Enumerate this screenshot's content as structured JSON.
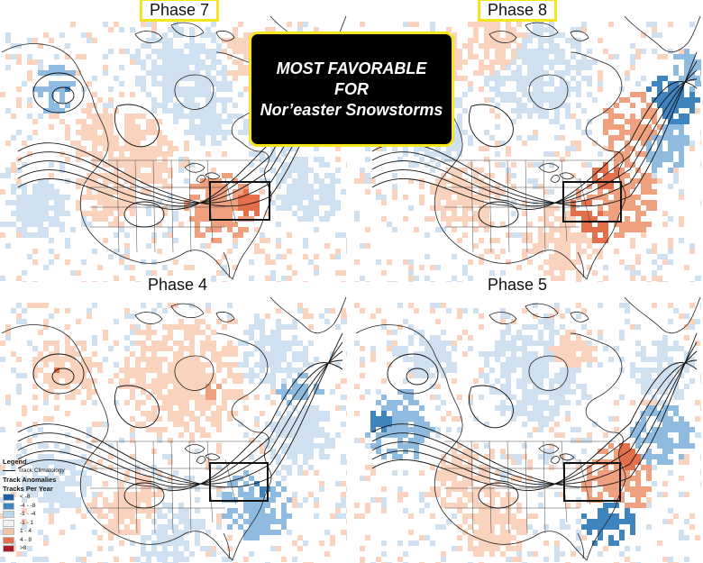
{
  "panels": [
    {
      "id": "p7",
      "title": "Phase 7",
      "highlighted": true,
      "favorable": true
    },
    {
      "id": "p8",
      "title": "Phase 8",
      "highlighted": true,
      "favorable": true
    },
    {
      "id": "p4",
      "title": "Phase 4",
      "highlighted": false,
      "favorable": false
    },
    {
      "id": "p5",
      "title": "Phase 5",
      "highlighted": false,
      "favorable": false
    }
  ],
  "callout": {
    "line1": "MOST FAVORABLE",
    "line2": "FOR",
    "line3": "Nor’easter Snowstorms"
  },
  "legend": {
    "title": "Legend",
    "climatology_label": "Track Climatology",
    "anomalies_label": "Track Anomalies",
    "units_label": "Tracks Per Year",
    "classes": [
      {
        "label": "< -8",
        "color": "#1f5fa0"
      },
      {
        "label": "-4 - -8",
        "color": "#3e85c0"
      },
      {
        "label": "-1 - -4",
        "color": "#bcd7ec"
      },
      {
        "label": "-1 - 1",
        "color": "#f4f4f4"
      },
      {
        "label": "1 - 4",
        "color": "#f7c3a6"
      },
      {
        "label": "4 - 8",
        "color": "#e46f4b"
      },
      {
        "label": ">8",
        "color": "#b2182b"
      }
    ]
  },
  "colors": {
    "highlight_border": "#f5e61b",
    "callout_bg": "#000000",
    "callout_text": "#ffffff",
    "box_outline": "#111111",
    "land_outline": "#222222"
  }
}
